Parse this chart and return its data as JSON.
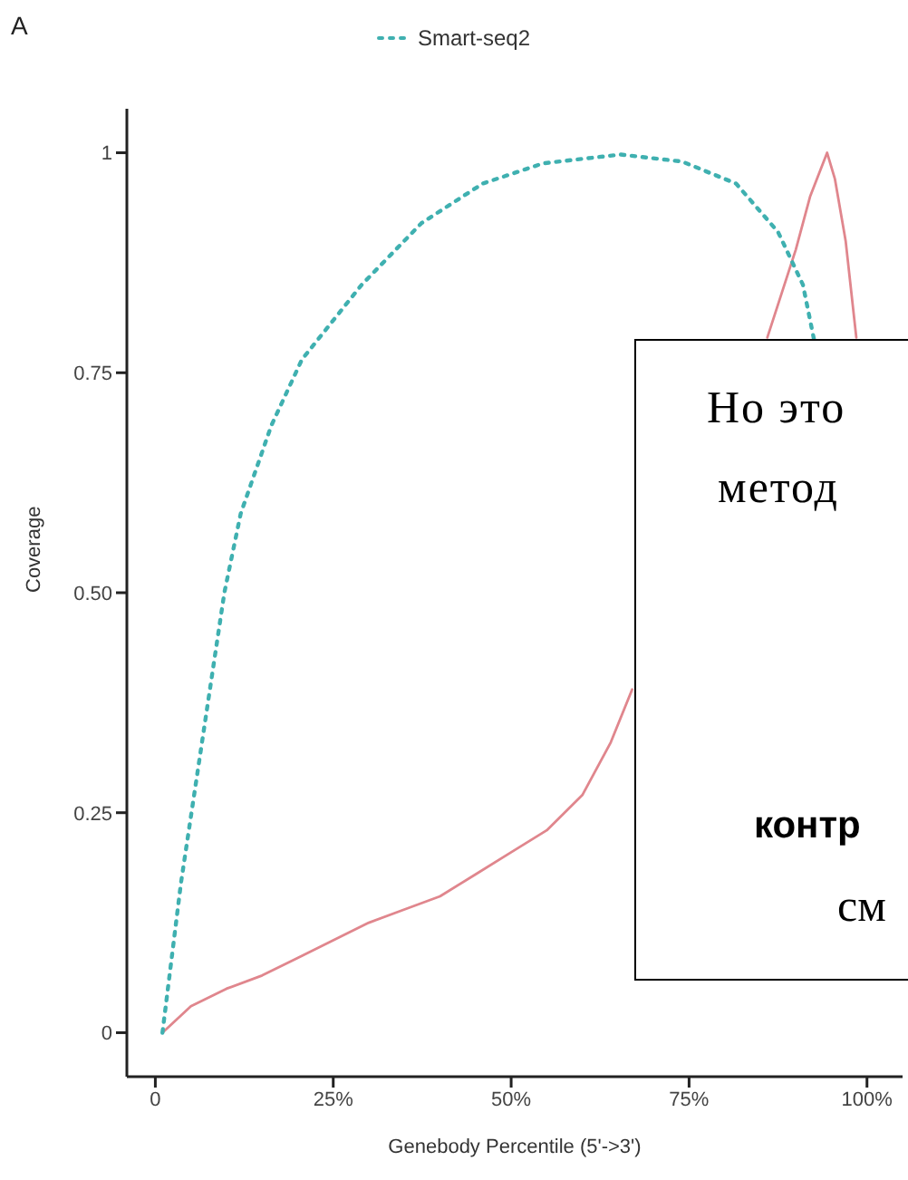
{
  "chart_data": {
    "type": "line",
    "xlabel": "Genebody Percentile (5'->3')",
    "ylabel": "Coverage",
    "annotations": [
      "A",
      "Но это",
      "метод",
      "контр",
      "см"
    ],
    "xlim": [
      -4,
      105
    ],
    "xticks": [
      0,
      {
        "value": 25,
        "label": "25%"
      },
      {
        "value": 50,
        "label": "50%"
      },
      {
        "value": 75,
        "label": "75%"
      },
      {
        "value": 100,
        "label": "100%"
      }
    ],
    "ylim": [
      -0.05,
      1.05
    ],
    "yticks": [
      0,
      0.25,
      {
        "value": 0.5,
        "label": "0.50"
      },
      0.75,
      1
    ],
    "legend": "top",
    "marker": "none",
    "series": [
      {
        "color": "#e0868d",
        "line_style": "solid",
        "x": [
          1,
          5,
          10,
          15,
          20,
          25,
          30,
          35,
          40,
          45,
          50,
          55,
          60,
          64,
          67,
          75,
          86,
          88,
          90,
          92,
          94.4,
          95.5,
          97,
          98.5
        ],
        "values": [
          0,
          0.03,
          0.05,
          0.065,
          0.085,
          0.105,
          0.125,
          0.14,
          0.155,
          0.18,
          0.205,
          0.23,
          0.27,
          0.33,
          0.39,
          null,
          0.79,
          0.84,
          0.89,
          0.95,
          1,
          0.97,
          0.9,
          0.79
        ]
      },
      {
        "name": "Smart-seq2",
        "color": "#3fb0b0",
        "line_style": "dotted",
        "x": [
          1,
          3.6,
          9.7,
          12,
          16.3,
          20.6,
          29,
          37.4,
          46,
          54.5,
          65.4,
          74,
          81.6,
          87.5,
          91,
          92.6
        ],
        "values": [
          0,
          0.17,
          0.5,
          0.59,
          0.69,
          0.765,
          0.85,
          0.92,
          0.965,
          0.988,
          0.998,
          0.99,
          0.965,
          0.91,
          0.85,
          0.786
        ]
      }
    ]
  }
}
